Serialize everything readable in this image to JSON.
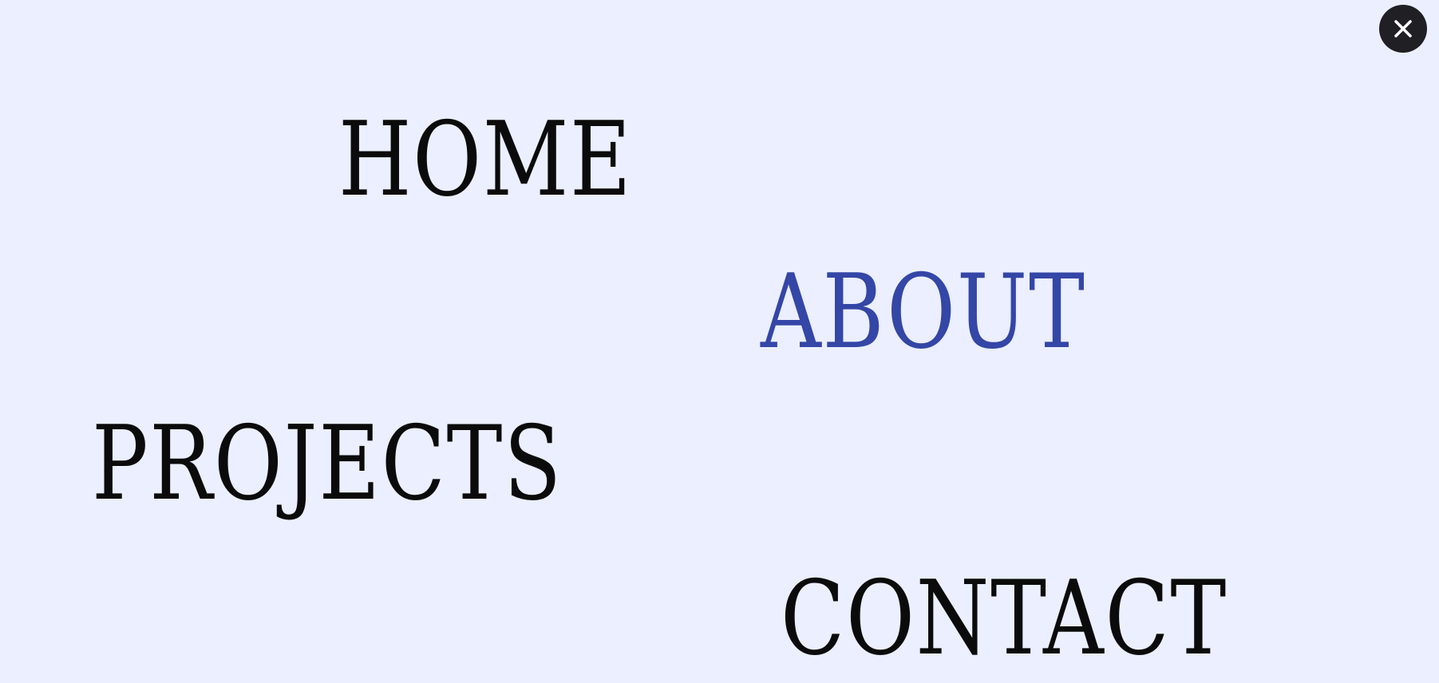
{
  "close_button": {
    "icon": "close-icon",
    "background": "#1f1f24",
    "icon_color": "#ffffff"
  },
  "nav": {
    "items": [
      {
        "label": "HOME",
        "active": false
      },
      {
        "label": "ABOUT",
        "active": true
      },
      {
        "label": "PROJECTS",
        "active": false
      },
      {
        "label": "CONTACT",
        "active": false
      }
    ]
  },
  "colors": {
    "background": "#ebefff",
    "text": "#0b0b0b",
    "accent": "#3446a6"
  }
}
